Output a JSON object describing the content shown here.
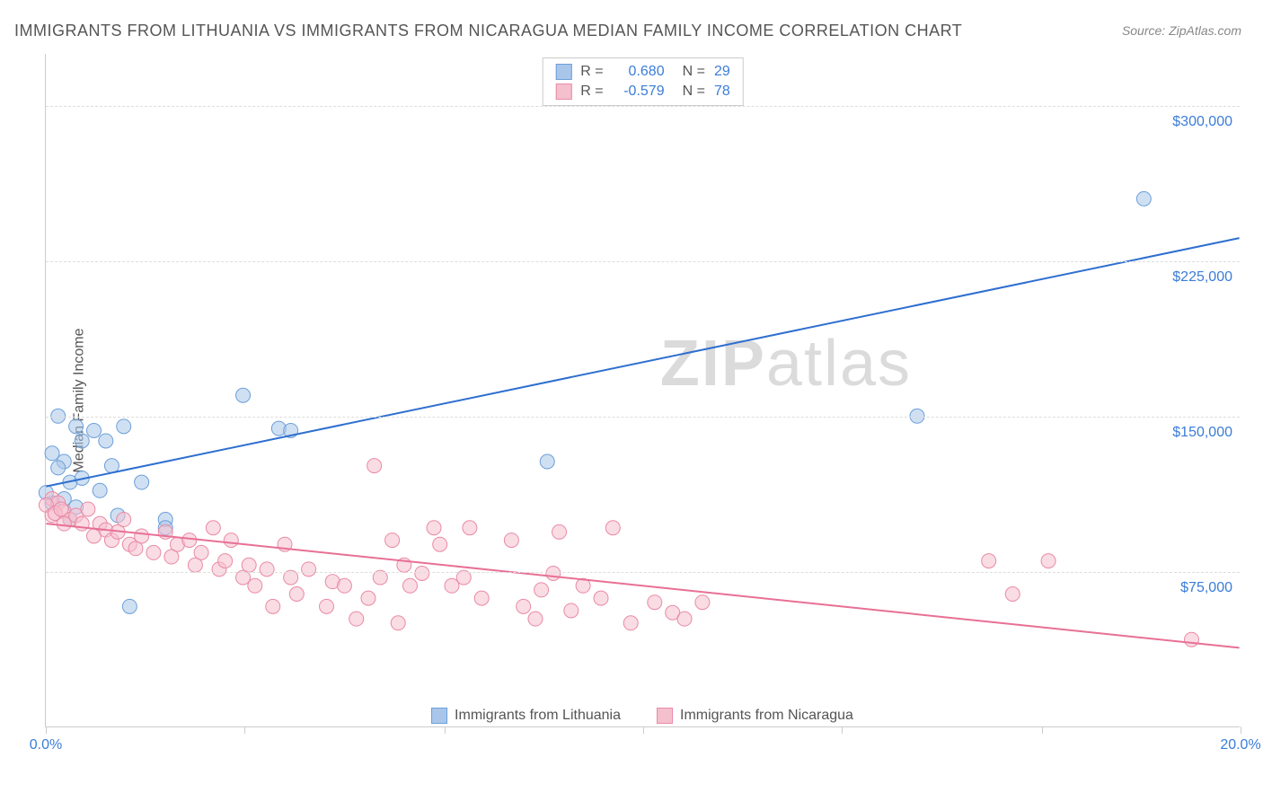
{
  "title": "IMMIGRANTS FROM LITHUANIA VS IMMIGRANTS FROM NICARAGUA MEDIAN FAMILY INCOME CORRELATION CHART",
  "source": "Source: ZipAtlas.com",
  "ylabel": "Median Family Income",
  "watermark_a": "ZIP",
  "watermark_b": "atlas",
  "chart": {
    "type": "scatter",
    "background_color": "#ffffff",
    "grid_color": "#dddddd",
    "axis_color": "#cccccc",
    "xlim": [
      0,
      20
    ],
    "ylim": [
      0,
      325000
    ],
    "xticks": [
      0,
      3.33,
      6.67,
      10,
      13.33,
      16.67,
      20
    ],
    "xtick_labels_shown": {
      "0": "0.0%",
      "20": "20.0%"
    },
    "ytick_values": [
      75000,
      150000,
      225000,
      300000
    ],
    "ytick_labels": [
      "$75,000",
      "$150,000",
      "$225,000",
      "$300,000"
    ],
    "marker_radius": 8,
    "marker_opacity": 0.55,
    "line_width": 2,
    "series": [
      {
        "name": "Immigrants from Lithuania",
        "color_fill": "#a9c6ea",
        "color_stroke": "#6b9fd8",
        "line_color": "#2e6fd0",
        "R": "0.680",
        "N": "29",
        "points": [
          [
            0.2,
            150000
          ],
          [
            0.3,
            128000
          ],
          [
            0.5,
            145000
          ],
          [
            0.6,
            138000
          ],
          [
            0.8,
            143000
          ],
          [
            1.0,
            138000
          ],
          [
            1.1,
            126000
          ],
          [
            1.3,
            145000
          ],
          [
            0.2,
            125000
          ],
          [
            0.4,
            118000
          ],
          [
            0.6,
            120000
          ],
          [
            0.1,
            108000
          ],
          [
            0.3,
            110000
          ],
          [
            0.5,
            106000
          ],
          [
            0.9,
            114000
          ],
          [
            1.2,
            102000
          ],
          [
            1.6,
            118000
          ],
          [
            2.0,
            100000
          ],
          [
            2.0,
            96000
          ],
          [
            1.4,
            58000
          ],
          [
            3.3,
            160000
          ],
          [
            3.9,
            144000
          ],
          [
            4.1,
            143000
          ],
          [
            8.4,
            128000
          ],
          [
            14.6,
            150000
          ],
          [
            18.4,
            255000
          ],
          [
            0.1,
            132000
          ],
          [
            0.4,
            100000
          ],
          [
            0.0,
            113000
          ]
        ],
        "trend": {
          "x1": 0,
          "y1": 116000,
          "x2": 20,
          "y2": 236000
        }
      },
      {
        "name": "Immigrants from Nicaragua",
        "color_fill": "#f5c0ce",
        "color_stroke": "#e98aa4",
        "line_color": "#e87095",
        "R": "-0.579",
        "N": "78",
        "points": [
          [
            0.1,
            110000
          ],
          [
            0.2,
            108000
          ],
          [
            0.3,
            104000
          ],
          [
            0.4,
            100000
          ],
          [
            0.5,
            102000
          ],
          [
            0.6,
            98000
          ],
          [
            0.7,
            105000
          ],
          [
            0.8,
            92000
          ],
          [
            0.9,
            98000
          ],
          [
            1.0,
            95000
          ],
          [
            1.1,
            90000
          ],
          [
            1.2,
            94000
          ],
          [
            1.3,
            100000
          ],
          [
            1.4,
            88000
          ],
          [
            1.5,
            86000
          ],
          [
            1.6,
            92000
          ],
          [
            1.8,
            84000
          ],
          [
            2.0,
            94000
          ],
          [
            2.1,
            82000
          ],
          [
            2.2,
            88000
          ],
          [
            2.4,
            90000
          ],
          [
            2.5,
            78000
          ],
          [
            2.6,
            84000
          ],
          [
            2.8,
            96000
          ],
          [
            2.9,
            76000
          ],
          [
            3.0,
            80000
          ],
          [
            3.1,
            90000
          ],
          [
            3.3,
            72000
          ],
          [
            3.4,
            78000
          ],
          [
            3.5,
            68000
          ],
          [
            3.7,
            76000
          ],
          [
            3.8,
            58000
          ],
          [
            4.0,
            88000
          ],
          [
            4.1,
            72000
          ],
          [
            4.2,
            64000
          ],
          [
            4.4,
            76000
          ],
          [
            4.7,
            58000
          ],
          [
            4.8,
            70000
          ],
          [
            5.0,
            68000
          ],
          [
            5.2,
            52000
          ],
          [
            5.4,
            62000
          ],
          [
            5.5,
            126000
          ],
          [
            5.6,
            72000
          ],
          [
            5.8,
            90000
          ],
          [
            5.9,
            50000
          ],
          [
            6.0,
            78000
          ],
          [
            6.1,
            68000
          ],
          [
            6.3,
            74000
          ],
          [
            6.5,
            96000
          ],
          [
            6.6,
            88000
          ],
          [
            6.8,
            68000
          ],
          [
            7.0,
            72000
          ],
          [
            7.1,
            96000
          ],
          [
            7.3,
            62000
          ],
          [
            7.8,
            90000
          ],
          [
            8.0,
            58000
          ],
          [
            8.2,
            52000
          ],
          [
            8.3,
            66000
          ],
          [
            8.5,
            74000
          ],
          [
            8.6,
            94000
          ],
          [
            8.8,
            56000
          ],
          [
            9.0,
            68000
          ],
          [
            9.3,
            62000
          ],
          [
            9.5,
            96000
          ],
          [
            9.8,
            50000
          ],
          [
            10.2,
            60000
          ],
          [
            10.5,
            55000
          ],
          [
            10.7,
            52000
          ],
          [
            11.0,
            60000
          ],
          [
            15.8,
            80000
          ],
          [
            16.2,
            64000
          ],
          [
            16.8,
            80000
          ],
          [
            19.2,
            42000
          ],
          [
            0.0,
            107000
          ],
          [
            0.1,
            102000
          ],
          [
            0.3,
            98000
          ],
          [
            0.15,
            103000
          ],
          [
            0.25,
            105000
          ]
        ],
        "trend": {
          "x1": 0,
          "y1": 98000,
          "x2": 20,
          "y2": 38000
        }
      }
    ]
  },
  "legend_top_labels": {
    "R": "R =",
    "N": "N ="
  },
  "legend_bottom": [
    {
      "label": "Immigrants from Lithuania",
      "series_idx": 0
    },
    {
      "label": "Immigrants from Nicaragua",
      "series_idx": 1
    }
  ]
}
